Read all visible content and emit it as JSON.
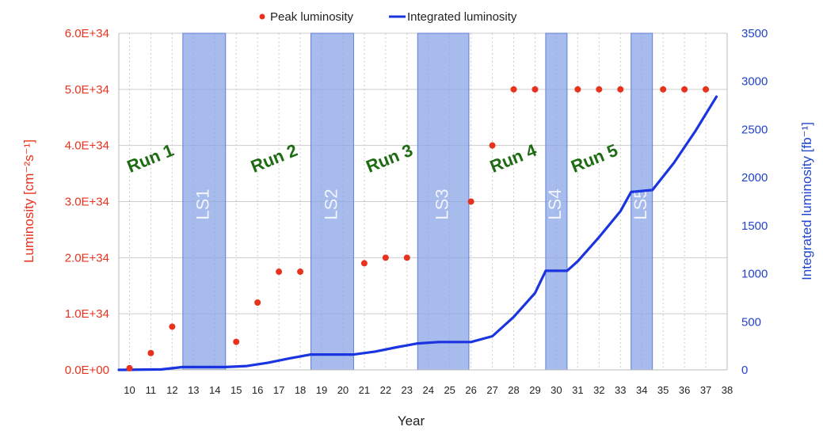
{
  "chart_data": {
    "type": "line",
    "xlabel": "Year",
    "ylabel_left": "Luminosity [cm⁻²s⁻¹]",
    "ylabel_right": "Integrated luminosity [fb⁻¹]",
    "x_ticks": [
      10,
      11,
      12,
      13,
      14,
      15,
      16,
      17,
      18,
      19,
      20,
      21,
      22,
      23,
      24,
      25,
      26,
      27,
      28,
      29,
      30,
      31,
      32,
      33,
      34,
      35,
      36,
      37,
      38
    ],
    "xlim": [
      9.5,
      38
    ],
    "ylim_left": [
      0,
      6e+34
    ],
    "ylim_right": [
      0,
      3500
    ],
    "left_ticks": [
      {
        "value": 0,
        "label": "0.0E+00"
      },
      {
        "value": 1e+34,
        "label": "1.0E+34"
      },
      {
        "value": 2e+34,
        "label": "2.0E+34"
      },
      {
        "value": 3e+34,
        "label": "3.0E+34"
      },
      {
        "value": 4e+34,
        "label": "4.0E+34"
      },
      {
        "value": 5e+34,
        "label": "5.0E+34"
      },
      {
        "value": 6e+34,
        "label": "6.0E+34"
      }
    ],
    "right_ticks": [
      0,
      500,
      1000,
      1500,
      2000,
      2500,
      3000,
      3500
    ],
    "grid": true,
    "legend_position": "top-center",
    "series": [
      {
        "name": "Peak luminosity",
        "kind": "scatter",
        "axis": "left",
        "color": "#e8321e",
        "points": [
          [
            10,
            3e+32
          ],
          [
            11,
            3e+33
          ],
          [
            12,
            7.7e+33
          ],
          [
            15,
            5e+33
          ],
          [
            16,
            1.2e+34
          ],
          [
            17,
            1.75e+34
          ],
          [
            18,
            1.75e+34
          ],
          [
            21,
            1.9e+34
          ],
          [
            22,
            2e+34
          ],
          [
            23,
            2e+34
          ],
          [
            26,
            3e+34
          ],
          [
            27,
            4e+34
          ],
          [
            28,
            5e+34
          ],
          [
            29,
            5e+34
          ],
          [
            31,
            5e+34
          ],
          [
            32,
            5e+34
          ],
          [
            33,
            5e+34
          ],
          [
            35,
            5e+34
          ],
          [
            36,
            5e+34
          ],
          [
            37,
            5e+34
          ]
        ]
      },
      {
        "name": "Integrated luminosity",
        "kind": "line",
        "axis": "right",
        "color": "#1a35e0",
        "points": [
          [
            9.5,
            0
          ],
          [
            11.5,
            5
          ],
          [
            12.5,
            30
          ],
          [
            14,
            30
          ],
          [
            14.5,
            30
          ],
          [
            15.5,
            40
          ],
          [
            16.5,
            75
          ],
          [
            17.5,
            120
          ],
          [
            18.5,
            160
          ],
          [
            19.5,
            160
          ],
          [
            20.5,
            160
          ],
          [
            21.5,
            190
          ],
          [
            22.5,
            235
          ],
          [
            23.5,
            275
          ],
          [
            24.5,
            290
          ],
          [
            25.5,
            290
          ],
          [
            26.0,
            290
          ],
          [
            27.0,
            350
          ],
          [
            28.0,
            550
          ],
          [
            29.0,
            800
          ],
          [
            29.5,
            1030
          ],
          [
            30.5,
            1030
          ],
          [
            31.0,
            1130
          ],
          [
            32.0,
            1380
          ],
          [
            33.0,
            1650
          ],
          [
            33.5,
            1850
          ],
          [
            34.5,
            1870
          ],
          [
            35.5,
            2150
          ],
          [
            36.5,
            2480
          ],
          [
            37.5,
            2840
          ]
        ]
      }
    ],
    "shutdowns": [
      {
        "label": "LS1",
        "start": 12.5,
        "end": 14.5
      },
      {
        "label": "LS2",
        "start": 18.5,
        "end": 20.5
      },
      {
        "label": "LS3",
        "start": 23.5,
        "end": 25.9
      },
      {
        "label": "LS4",
        "start": 29.5,
        "end": 30.5
      },
      {
        "label": "LS5",
        "start": 33.5,
        "end": 34.5
      }
    ],
    "runs": [
      {
        "label": "Run 1",
        "x": 11.0,
        "y": 3.75e+34
      },
      {
        "label": "Run 2",
        "x": 16.8,
        "y": 3.75e+34
      },
      {
        "label": "Run 3",
        "x": 22.2,
        "y": 3.75e+34
      },
      {
        "label": "Run 4",
        "x": 28.0,
        "y": 3.75e+34
      },
      {
        "label": "Run 5",
        "x": 31.8,
        "y": 3.75e+34
      }
    ],
    "colors": {
      "shutdown_fill": "#8aa4e6",
      "grid": "#cccccc",
      "left_axis_text": "#e8321e",
      "right_axis_text": "#2244cc",
      "run_text": "#1e6b14"
    }
  }
}
